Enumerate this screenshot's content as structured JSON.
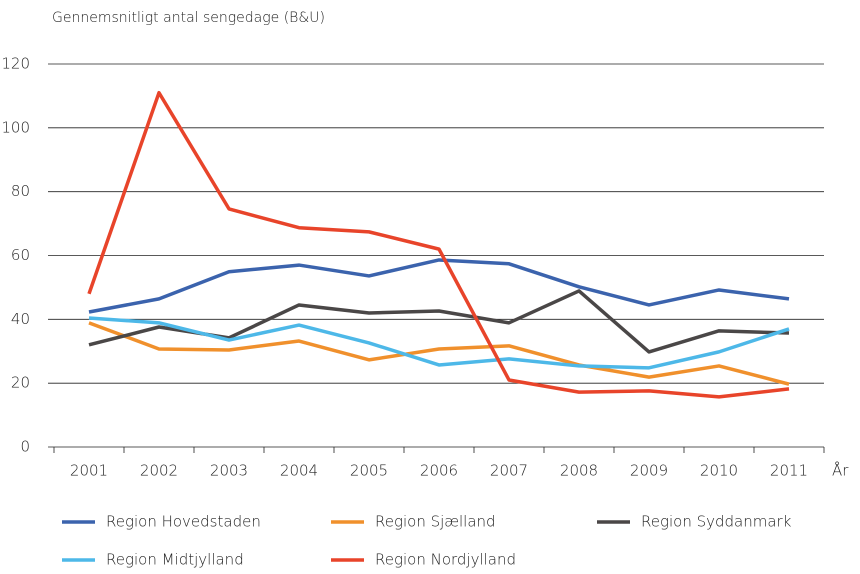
{
  "chart_data": {
    "type": "line",
    "title": "Gennemsnitligt antal sengedage (B&U)",
    "x_label": "År",
    "categories": [
      "2001",
      "2002",
      "2003",
      "2004",
      "2005",
      "2006",
      "2007",
      "2008",
      "2009",
      "2010",
      "2011"
    ],
    "series": [
      {
        "name": "Region Hovedstaden",
        "color": "#3b63ad",
        "values": [
          42.3,
          46.4,
          54.9,
          57,
          53.6,
          58.6,
          57.4,
          50.2,
          44.5,
          49.2,
          46.4
        ]
      },
      {
        "name": "Region Sjælland",
        "color": "#f0902c",
        "values": [
          38.9,
          30.7,
          30.4,
          33.2,
          27.3,
          30.7,
          31.7,
          25.7,
          21.9,
          25.4,
          19.7
        ]
      },
      {
        "name": "Region Syddanmark",
        "color": "#4a4747",
        "values": [
          32,
          37.6,
          34.2,
          44.5,
          42,
          42.6,
          38.9,
          48.9,
          29.8,
          36.4,
          35.7
        ]
      },
      {
        "name": "Region Midtjylland",
        "color": "#4db8e8",
        "values": [
          40.4,
          38.9,
          33.5,
          38.2,
          32.6,
          25.7,
          27.6,
          25.4,
          24.8,
          29.8,
          37
        ]
      },
      {
        "name": "Region Nordjylland",
        "color": "#e8442a",
        "values": [
          48,
          111,
          74.6,
          68.7,
          67.4,
          62,
          21,
          17.2,
          17.6,
          15.7,
          18.2
        ]
      }
    ],
    "ylim": [
      0,
      120
    ],
    "yticks": [
      0,
      20,
      40,
      60,
      80,
      100,
      120
    ],
    "grid": true
  }
}
